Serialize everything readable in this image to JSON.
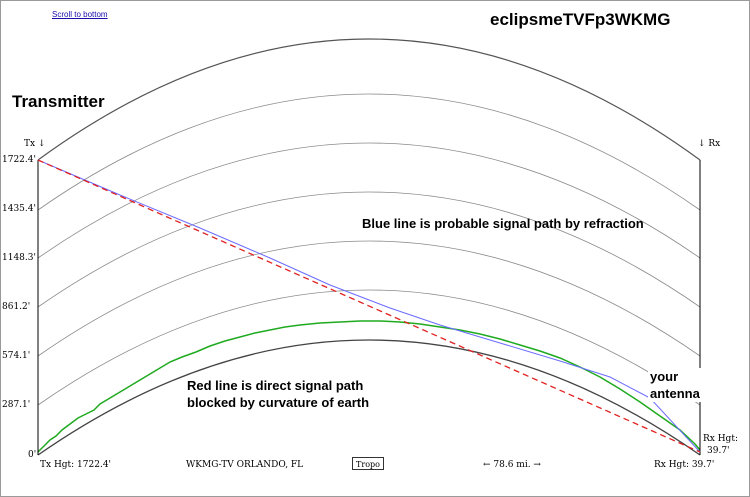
{
  "header": {
    "scroll_link": "Scroll to bottom",
    "title": "eclipsmeTVFp3WKMG"
  },
  "labels": {
    "transmitter": "Transmitter",
    "tx_marker": "Tx ↓",
    "rx_marker": "↓ Rx",
    "rx_hgt_side": "Rx Hgt:",
    "rx_hgt_side_value": "39.7'",
    "blue_note": "Blue line is probable signal path by refraction",
    "red_note_line1": "Red line is direct signal path",
    "red_note_line2": "blocked by curvature of earth",
    "antenna_line1": "your",
    "antenna_line2": "antenna"
  },
  "footer": {
    "tx_hgt": "Tx Hgt: 1722.4'",
    "station": "WKMG-TV ORLANDO, FL",
    "tropo_button": "Tropo",
    "distance": "← 78.6 mi. →",
    "rx_hgt": "Rx Hgt: 39.7'"
  },
  "y_axis": {
    "ticks": [
      "1722.4'",
      "1435.4'",
      "1148.3'",
      "861.2'",
      "574.1'",
      "287.1'",
      "0'"
    ]
  },
  "colors": {
    "blue_path": "#6b6bff",
    "red_path": "#e02020",
    "terrain": "#1faa1f",
    "arc": "#8a8a8a",
    "earth": "#444444"
  }
}
